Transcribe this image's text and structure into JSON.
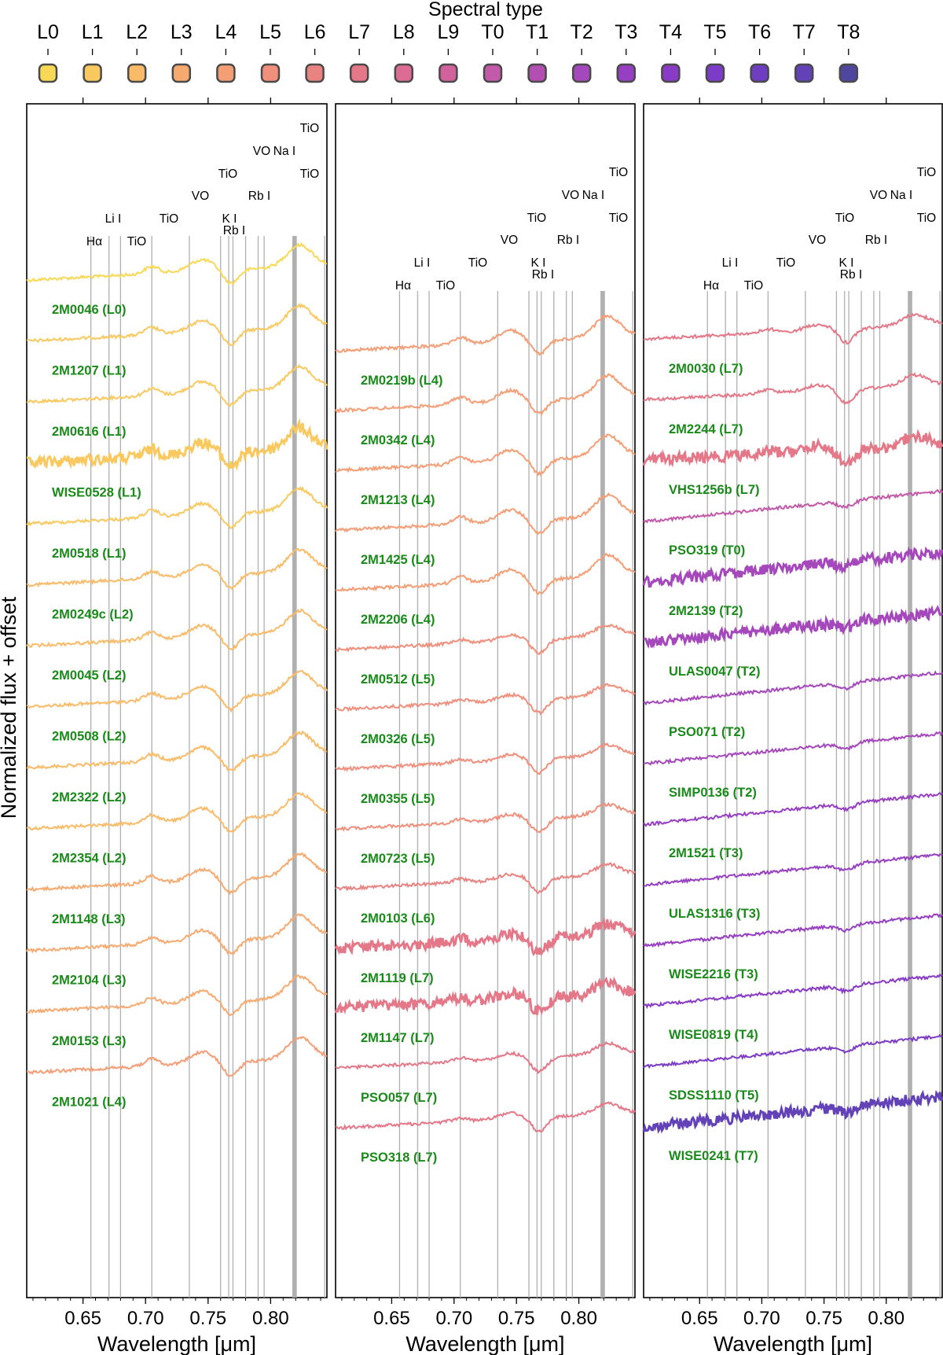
{
  "chart_data": {
    "type": "line",
    "title": "Spectral type",
    "ylabel": "Normalized flux + offset",
    "xlabel": "Wavelength [μm]",
    "xlim": [
      0.605,
      0.845
    ],
    "xticks": [
      0.65,
      0.7,
      0.75,
      0.8
    ],
    "xtick_labels": [
      "0.65",
      "0.70",
      "0.75",
      "0.80"
    ],
    "colorbar": {
      "labels": [
        "L0",
        "L1",
        "L2",
        "L3",
        "L4",
        "L5",
        "L6",
        "L7",
        "L8",
        "L9",
        "T0",
        "T1",
        "T2",
        "T3",
        "T4",
        "T5",
        "T6",
        "T7",
        "T8"
      ],
      "colors": [
        "#f8d957",
        "#f9c95f",
        "#f9bb68",
        "#f7aa70",
        "#f49e76",
        "#ef8f7c",
        "#e98382",
        "#e47889",
        "#dc6c93",
        "#d1629c",
        "#c259a9",
        "#b34eb2",
        "#a548bb",
        "#973fc2",
        "#8a3bc6",
        "#7d3cc7",
        "#6f3dc2",
        "#6341b7",
        "#4f479f"
      ]
    },
    "line_labels": [
      {
        "text": "Hα",
        "x": 0.6563
      },
      {
        "text": "Li I",
        "x": 0.6708
      },
      {
        "text": "TiO",
        "x": 0.68
      },
      {
        "text": "TiO",
        "x": 0.705
      },
      {
        "text": "VO",
        "x": 0.735
      },
      {
        "text": "TiO",
        "x": 0.76
      },
      {
        "text": "K I",
        "x": 0.7665
      },
      {
        "text": "K I",
        "x": 0.7699
      },
      {
        "text": "Rb I",
        "x": 0.78
      },
      {
        "text": "Rb I",
        "x": 0.7948
      },
      {
        "text": "VO",
        "x": 0.79
      },
      {
        "text": "Na I",
        "x": 0.8183
      },
      {
        "text": "Na I",
        "x": 0.8195
      },
      {
        "text": "TiO",
        "x": 0.8205
      },
      {
        "text": "TiO",
        "x": 0.8432
      }
    ],
    "panels": [
      {
        "series": [
          {
            "name": "2M0046 (L0)",
            "spt": "L0"
          },
          {
            "name": "2M1207 (L1)",
            "spt": "L1"
          },
          {
            "name": "2M0616 (L1)",
            "spt": "L1"
          },
          {
            "name": "WISE0528 (L1)",
            "spt": "L1"
          },
          {
            "name": "2M0518 (L1)",
            "spt": "L1"
          },
          {
            "name": "2M0249c (L2)",
            "spt": "L2"
          },
          {
            "name": "2M0045 (L2)",
            "spt": "L2"
          },
          {
            "name": "2M0508 (L2)",
            "spt": "L2"
          },
          {
            "name": "2M2322 (L2)",
            "spt": "L2"
          },
          {
            "name": "2M2354 (L2)",
            "spt": "L2"
          },
          {
            "name": "2M1148 (L3)",
            "spt": "L3"
          },
          {
            "name": "2M2104 (L3)",
            "spt": "L3"
          },
          {
            "name": "2M0153 (L3)",
            "spt": "L3"
          },
          {
            "name": "2M1021 (L4)",
            "spt": "L4"
          }
        ]
      },
      {
        "series": [
          {
            "name": "2M0219b (L4)",
            "spt": "L4"
          },
          {
            "name": "2M0342 (L4)",
            "spt": "L4"
          },
          {
            "name": "2M1213 (L4)",
            "spt": "L4"
          },
          {
            "name": "2M1425 (L4)",
            "spt": "L4"
          },
          {
            "name": "2M2206 (L4)",
            "spt": "L4"
          },
          {
            "name": "2M0512 (L5)",
            "spt": "L5"
          },
          {
            "name": "2M0326 (L5)",
            "spt": "L5"
          },
          {
            "name": "2M0355 (L5)",
            "spt": "L5"
          },
          {
            "name": "2M0723 (L5)",
            "spt": "L5"
          },
          {
            "name": "2M0103 (L6)",
            "spt": "L6"
          },
          {
            "name": "2M1119 (L7)",
            "spt": "L7"
          },
          {
            "name": "2M1147 (L7)",
            "spt": "L7"
          },
          {
            "name": "PSO057 (L7)",
            "spt": "L7"
          },
          {
            "name": "PSO318 (L7)",
            "spt": "L7"
          }
        ]
      },
      {
        "series": [
          {
            "name": "2M0030 (L7)",
            "spt": "L7"
          },
          {
            "name": "2M2244 (L7)",
            "spt": "L7"
          },
          {
            "name": "VHS1256b (L7)",
            "spt": "L7"
          },
          {
            "name": "PSO319 (T0)",
            "spt": "T0"
          },
          {
            "name": "2M2139 (T2)",
            "spt": "T2"
          },
          {
            "name": "ULAS0047 (T2)",
            "spt": "T2"
          },
          {
            "name": "PSO071 (T2)",
            "spt": "T2"
          },
          {
            "name": "SIMP0136 (T2)",
            "spt": "T2"
          },
          {
            "name": "2M1521 (T3)",
            "spt": "T3"
          },
          {
            "name": "ULAS1316 (T3)",
            "spt": "T3"
          },
          {
            "name": "WISE2216 (T3)",
            "spt": "T3"
          },
          {
            "name": "WISE0819 (T4)",
            "spt": "T4"
          },
          {
            "name": "SDSS1110 (T5)",
            "spt": "T5"
          },
          {
            "name": "WISE0241 (T7)",
            "spt": "T7"
          }
        ]
      }
    ]
  }
}
